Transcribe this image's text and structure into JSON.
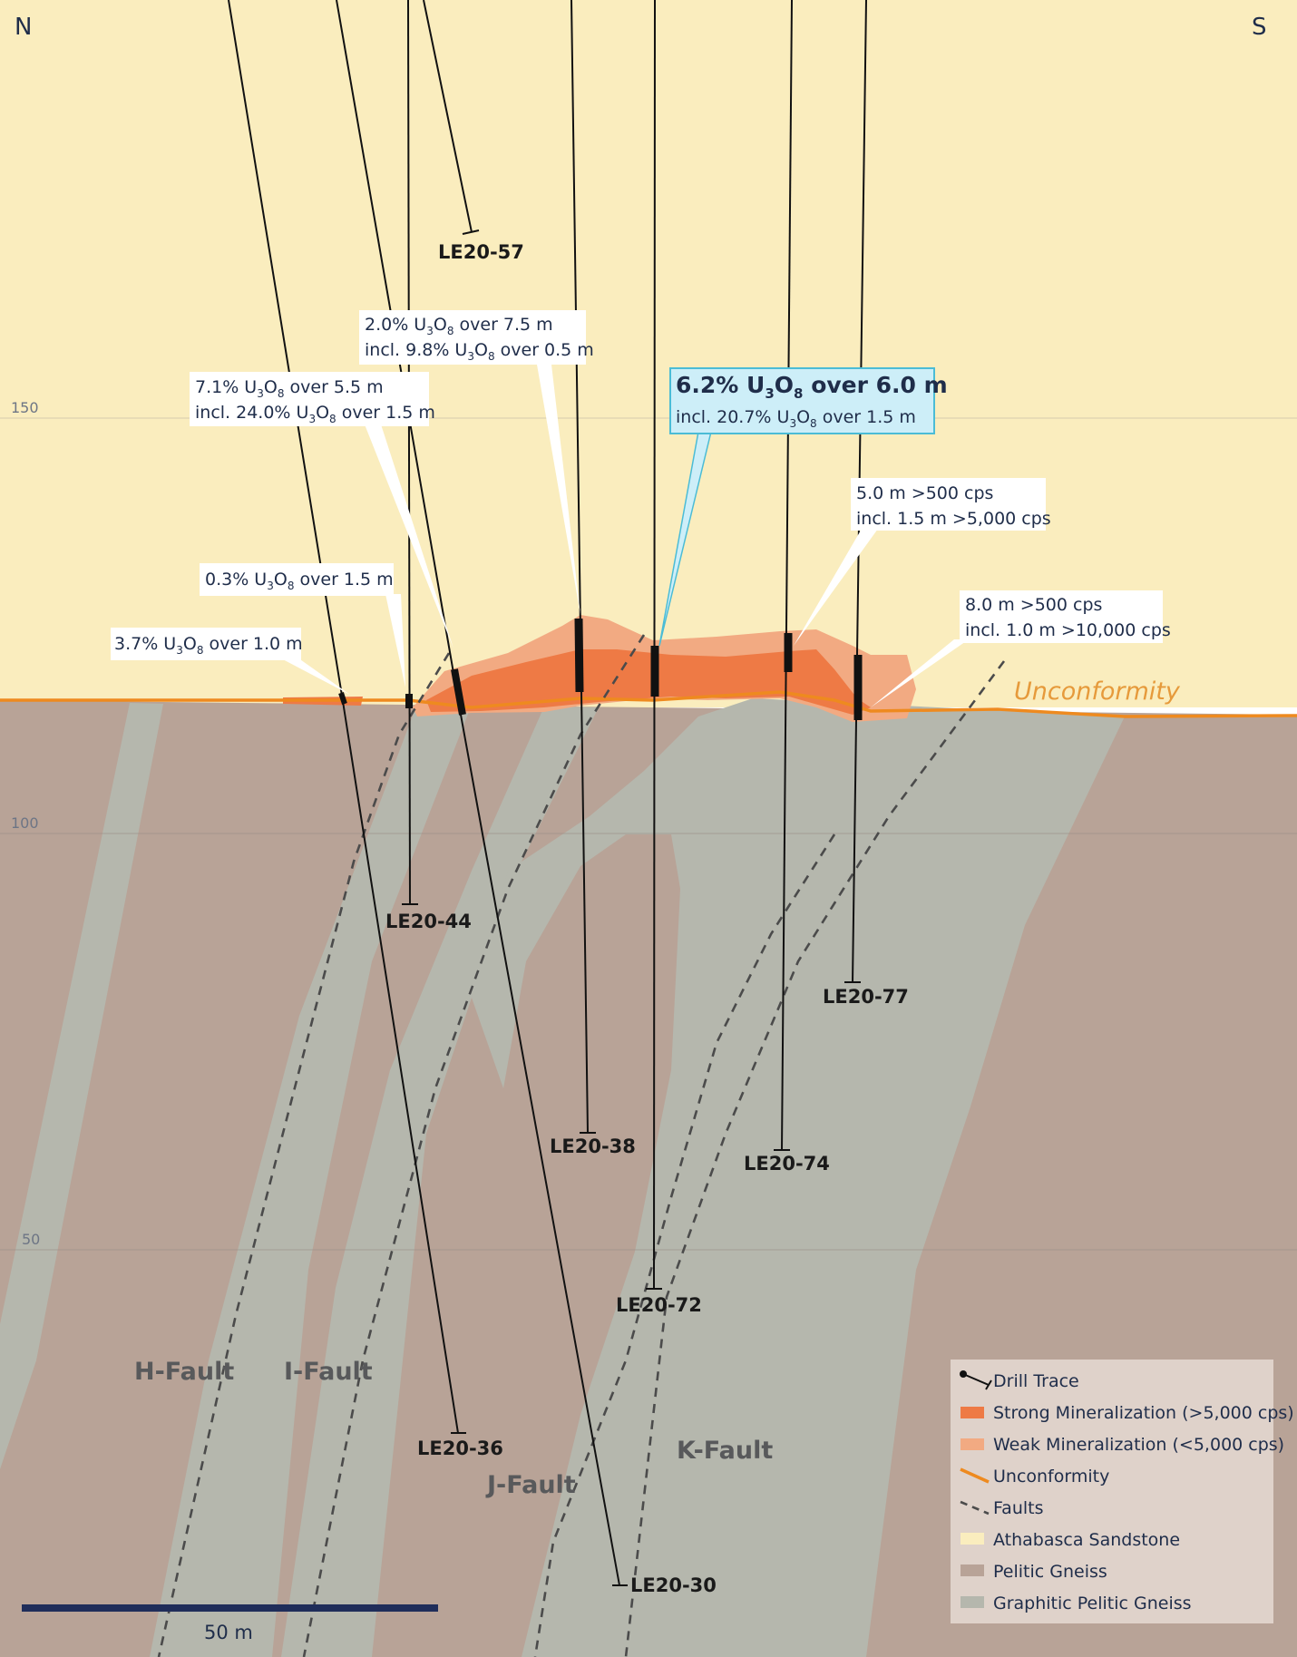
{
  "compass": {
    "north": "N",
    "south": "S"
  },
  "elevation_labels": [
    "150",
    "100",
    "50"
  ],
  "unconformity_label": "Unconformity",
  "drill_holes": [
    {
      "id": "LE20-57"
    },
    {
      "id": "LE20-44"
    },
    {
      "id": "LE20-38"
    },
    {
      "id": "LE20-77"
    },
    {
      "id": "LE20-74"
    },
    {
      "id": "LE20-72"
    },
    {
      "id": "LE20-36"
    },
    {
      "id": "LE20-30"
    }
  ],
  "faults": [
    "H-Fault",
    "I-Fault",
    "J-Fault",
    "K-Fault"
  ],
  "callouts": {
    "c1": {
      "pre": "2.0% U",
      "mid": "O",
      "post": " over 7.5 m",
      "line2_pre": "incl. 9.8% U",
      "line2_post": " over 0.5 m"
    },
    "c2": {
      "pre": "7.1% U",
      "mid": "O",
      "post": " over 5.5 m",
      "line2_pre": "incl. 24.0% U",
      "line2_post": " over 1.5 m"
    },
    "c3": {
      "pre": "6.2% U",
      "mid": "O",
      "post": " over 6.0 m",
      "line2_pre": "incl. 20.7% U",
      "line2_post": " over 1.5 m"
    },
    "c4": {
      "line1": "5.0 m >500 cps",
      "line2": "incl. 1.5 m >5,000 cps"
    },
    "c5": {
      "pre": "0.3% U",
      "post": " over 1.5 m"
    },
    "c6": {
      "pre": "3.7% U",
      "post": " over 1.0 m"
    },
    "c7": {
      "line1": "8.0 m >500 cps",
      "line2": "incl. 1.0 m >10,000 cps"
    },
    "sub3": "3",
    "sub8": "8"
  },
  "scale_bar": {
    "label": "50 m"
  },
  "legend": {
    "items": [
      {
        "label": "Drill Trace"
      },
      {
        "label": "Strong Mineralization (>5,000 cps)",
        "color": "#ee7a45"
      },
      {
        "label": "Weak Mineralization (<5,000 cps)",
        "color": "#f2aa82"
      },
      {
        "label": "Unconformity",
        "color": "#ee8a1f"
      },
      {
        "label": "Faults"
      },
      {
        "label": "Athabasca Sandstone",
        "color": "#faedbe"
      },
      {
        "label": "Pelitic Gneiss",
        "color": "#b8a397"
      },
      {
        "label": "Graphitic Pelitic Gneiss",
        "color": "#b5b7ad"
      }
    ]
  },
  "colors": {
    "sandstone": "#faedbe",
    "pelitic": "#b8a397",
    "graphitic": "#b5b7ad",
    "strong": "#ee7a45",
    "weak": "#f2aa82",
    "unconformity": "#ee8a1f",
    "highlight_box": "#cdeef8",
    "highlight_border": "#4bbcd6",
    "text_dark": "#1f2d4a"
  }
}
